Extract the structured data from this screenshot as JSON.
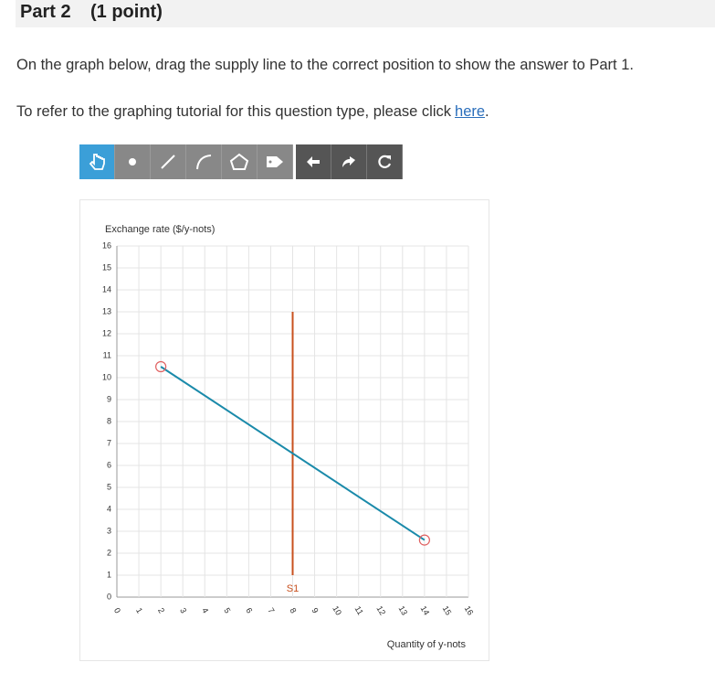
{
  "header": {
    "title": "Part 2",
    "points": "(1 point)"
  },
  "instructions": "On the graph below, drag the supply line to the correct position to show the answer to Part 1.",
  "tutorial": {
    "text": "To refer to the graphing tutorial for this question type, please click",
    "link": "here",
    "suffix": "."
  },
  "chart_data": {
    "type": "line",
    "ylabel": "Exchange rate ($/y-nots)",
    "xlabel": "Quantity of y-nots",
    "xlim": [
      0,
      16
    ],
    "ylim": [
      0,
      16
    ],
    "xticks": [
      0,
      1,
      2,
      3,
      4,
      5,
      6,
      7,
      8,
      9,
      10,
      11,
      12,
      13,
      14,
      15,
      16
    ],
    "yticks": [
      0,
      1,
      2,
      3,
      4,
      5,
      6,
      7,
      8,
      9,
      10,
      11,
      12,
      13,
      14,
      15,
      16
    ],
    "grid": true,
    "series": [
      {
        "name": "S1",
        "color": "#c8501e",
        "x": [
          8,
          8
        ],
        "values": [
          1,
          13
        ],
        "endpoint_markers": false
      },
      {
        "color": "#1a8aaa",
        "x": [
          2,
          14
        ],
        "values": [
          10.5,
          2.6
        ],
        "endpoint_markers": true
      }
    ]
  }
}
